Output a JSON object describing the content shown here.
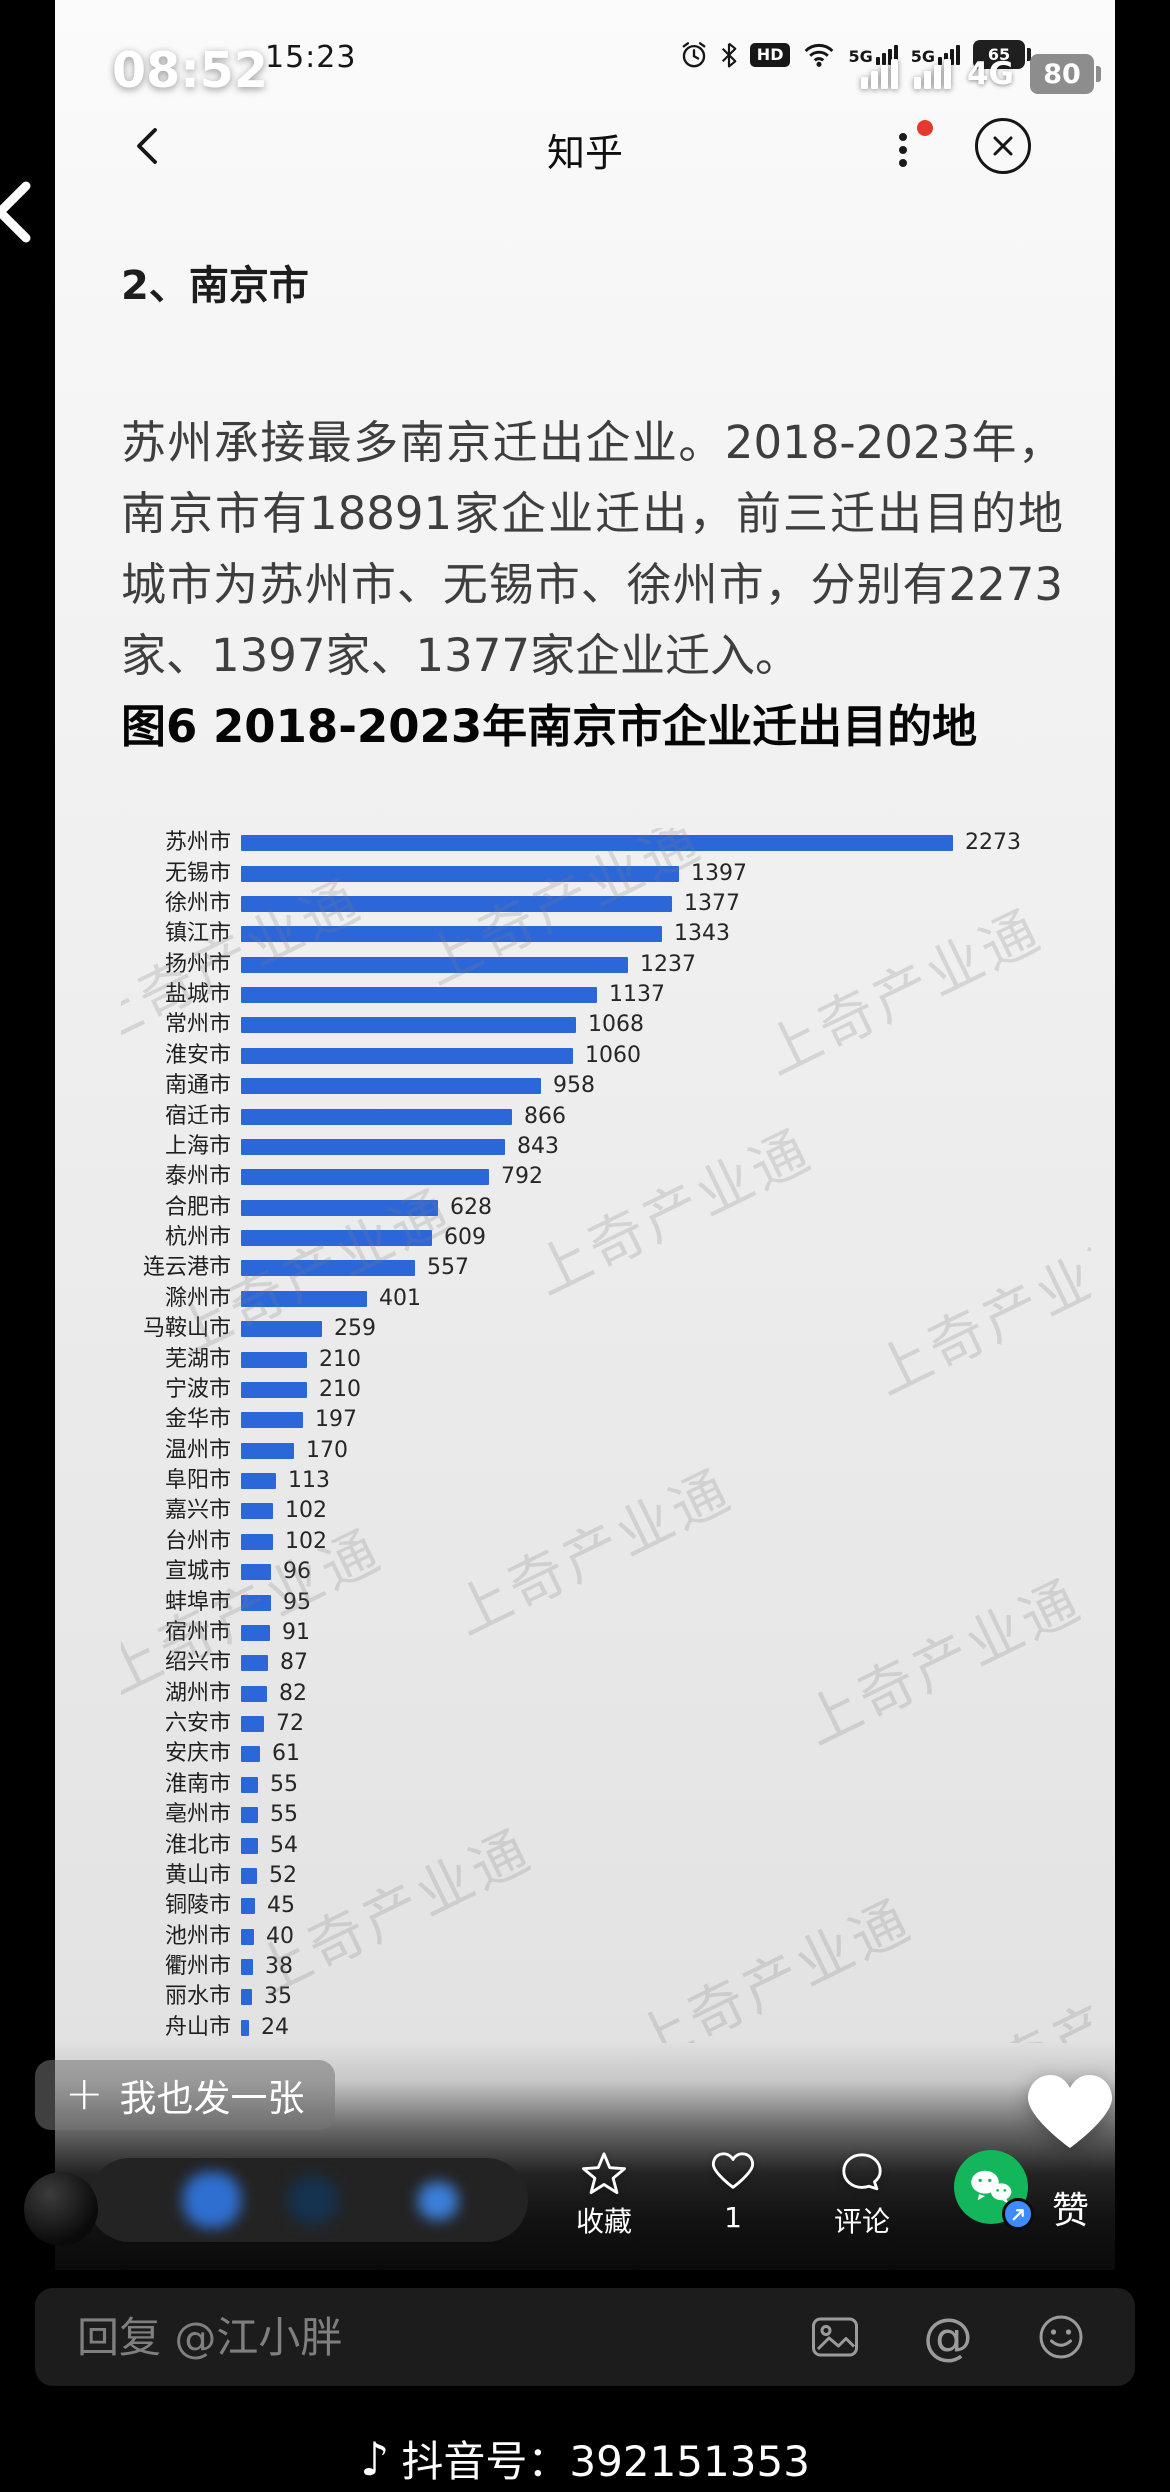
{
  "outer_status": {
    "time": "08:52",
    "network": "4G",
    "battery": "80"
  },
  "inner_status": {
    "time": "15:23",
    "hd_label": "HD",
    "net_label_1": "5G",
    "net_label_2": "5G",
    "battery": "65"
  },
  "nav": {
    "title": "知乎"
  },
  "article": {
    "heading": "2、南京市",
    "paragraph": "苏州承接最多南京迁出企业。2018-2023年，南京市有18891家企业迁出，前三迁出目的地城市为苏州市、无锡市、徐州市，分别有2273家、1397家、1377家企业迁入。",
    "figure_caption": "图6 2018-2023年南京市企业迁出目的地"
  },
  "chart_data": {
    "type": "bar",
    "orientation": "horizontal",
    "title": "图6 2018-2023年南京市企业迁出目的地",
    "categories": [
      "苏州市",
      "无锡市",
      "徐州市",
      "镇江市",
      "扬州市",
      "盐城市",
      "常州市",
      "淮安市",
      "南通市",
      "宿迁市",
      "上海市",
      "泰州市",
      "合肥市",
      "杭州市",
      "连云港市",
      "滁州市",
      "马鞍山市",
      "芜湖市",
      "宁波市",
      "金华市",
      "温州市",
      "阜阳市",
      "嘉兴市",
      "台州市",
      "宣城市",
      "蚌埠市",
      "宿州市",
      "绍兴市",
      "湖州市",
      "六安市",
      "安庆市",
      "淮南市",
      "亳州市",
      "淮北市",
      "黄山市",
      "铜陵市",
      "池州市",
      "衢州市",
      "丽水市",
      "舟山市"
    ],
    "values": [
      2273,
      1397,
      1377,
      1343,
      1237,
      1137,
      1068,
      1060,
      958,
      866,
      843,
      792,
      628,
      609,
      557,
      401,
      259,
      210,
      210,
      197,
      170,
      113,
      102,
      102,
      96,
      95,
      91,
      87,
      82,
      72,
      61,
      55,
      55,
      54,
      52,
      45,
      40,
      38,
      35,
      24
    ],
    "xlim": [
      0,
      2400
    ],
    "bar_color": "#2c67da",
    "value_labels": true,
    "grid": false,
    "legend": false,
    "watermark": "上奇产业通"
  },
  "viewer": {
    "add_photo_plus": "+",
    "add_photo_label": "我也发一张",
    "like_label": "赞",
    "action_star_label": "收藏",
    "action_like_count": "1",
    "action_comment_label": "评论",
    "comment_placeholder": "回复 @江小胖",
    "at_symbol": "@",
    "douyin_id": "抖音号：392151353"
  },
  "icons": {
    "music_note": "♪"
  }
}
